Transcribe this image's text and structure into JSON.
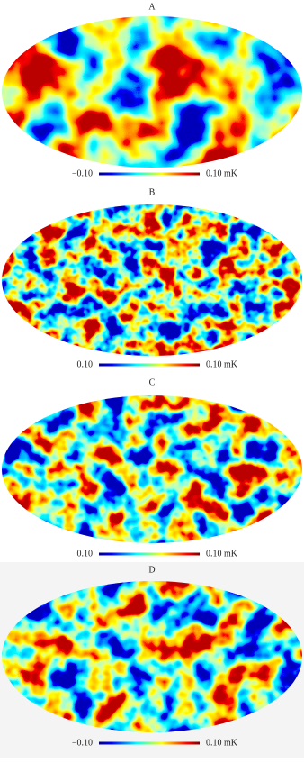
{
  "panels": [
    {
      "label": "A",
      "colorbar": {
        "min_label": "−0.10",
        "max_label": "0.10 mK"
      }
    },
    {
      "label": "B",
      "colorbar": {
        "min_label": "0.10",
        "max_label": "0.10 mK"
      }
    },
    {
      "label": "C",
      "colorbar": {
        "min_label": "0.10",
        "max_label": "0.10 mK"
      }
    },
    {
      "label": "D",
      "colorbar": {
        "min_label": "−0.10",
        "max_label": "0.10 mK"
      }
    }
  ]
}
